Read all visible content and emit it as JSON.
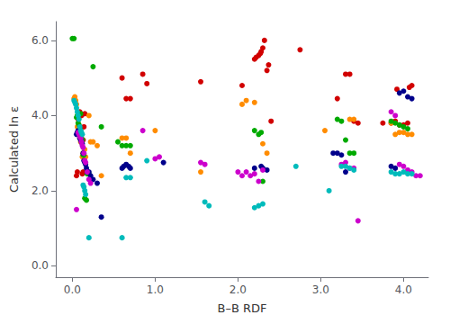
{
  "chart_data": {
    "type": "scatter",
    "xlabel": "B–B RDF",
    "ylabel": "Calculated ln ε",
    "xlim": [
      -0.2,
      4.3
    ],
    "ylim": [
      -0.3,
      6.5
    ],
    "xticks": [
      {
        "value": 0,
        "label": "0.0"
      },
      {
        "value": 1,
        "label": "1.0"
      },
      {
        "value": 2,
        "label": "2.0"
      },
      {
        "value": 3,
        "label": "3.0"
      },
      {
        "value": 4,
        "label": "4.0"
      }
    ],
    "yticks": [
      {
        "value": 0,
        "label": "0.0"
      },
      {
        "value": 2,
        "label": "2.0"
      },
      {
        "value": 4,
        "label": "4.0"
      },
      {
        "value": 6,
        "label": "6.0"
      }
    ],
    "grid": false,
    "series": [
      {
        "color": "#d10000",
        "x": [
          0.05,
          0.06,
          0.07,
          0.08,
          0.09,
          0.09,
          0.1,
          0.11,
          0.12,
          0.13,
          0.13,
          0.14,
          0.15,
          0.6,
          0.65,
          0.7,
          0.85,
          0.9,
          1.55,
          2.05,
          2.2,
          2.22,
          2.25,
          2.27,
          2.28,
          2.3,
          2.32,
          2.35,
          2.37,
          2.4,
          2.75,
          3.2,
          3.3,
          3.35,
          3.4,
          3.45,
          3.75,
          3.85,
          3.9,
          3.92,
          3.95,
          4.0,
          4.05,
          4.07,
          4.1
        ],
        "values": [
          2.4,
          2.5,
          3.9,
          4.0,
          4.1,
          3.55,
          3.6,
          4.0,
          2.45,
          2.5,
          3.35,
          3.7,
          4.05,
          5.0,
          4.45,
          4.45,
          5.1,
          4.85,
          4.9,
          4.8,
          5.5,
          5.55,
          5.6,
          5.65,
          5.7,
          5.8,
          6.0,
          5.2,
          5.35,
          3.85,
          5.75,
          4.45,
          5.1,
          5.1,
          3.85,
          3.8,
          3.8,
          3.8,
          3.85,
          4.7,
          3.75,
          3.75,
          3.8,
          4.75,
          4.8
        ]
      },
      {
        "color": "#ff8c00",
        "x": [
          0.02,
          0.03,
          0.04,
          0.05,
          0.06,
          0.07,
          0.08,
          0.09,
          0.1,
          0.11,
          0.12,
          0.13,
          0.14,
          0.15,
          0.16,
          0.2,
          0.22,
          0.25,
          0.3,
          0.35,
          0.6,
          0.65,
          0.7,
          1.0,
          1.55,
          2.05,
          2.1,
          2.2,
          2.3,
          2.35,
          3.05,
          3.35,
          3.4,
          3.85,
          3.9,
          3.95,
          4.0,
          4.05,
          4.1
        ],
        "values": [
          4.45,
          4.5,
          4.4,
          4.3,
          3.7,
          3.5,
          3.55,
          3.4,
          3.3,
          3.3,
          2.9,
          3.0,
          2.9,
          3.1,
          2.9,
          4.0,
          3.3,
          3.3,
          3.2,
          2.4,
          3.4,
          3.4,
          3.0,
          3.6,
          2.5,
          4.3,
          4.4,
          4.35,
          3.25,
          3.0,
          3.6,
          3.9,
          3.9,
          3.8,
          3.5,
          3.55,
          3.55,
          3.5,
          3.5
        ]
      },
      {
        "color": "#00aa00",
        "x": [
          0.0,
          0.02,
          0.05,
          0.06,
          0.07,
          0.08,
          0.09,
          0.1,
          0.1,
          0.11,
          0.12,
          0.13,
          0.14,
          0.15,
          0.17,
          0.18,
          0.2,
          0.25,
          0.35,
          0.55,
          0.6,
          0.65,
          0.7,
          2.2,
          2.25,
          2.28,
          2.3,
          3.2,
          3.25,
          3.3,
          3.35,
          3.4,
          3.85,
          3.9,
          3.95,
          4.0,
          4.05
        ],
        "values": [
          6.05,
          6.05,
          3.95,
          4.0,
          3.8,
          3.75,
          3.65,
          3.5,
          4.05,
          3.4,
          3.35,
          2.95,
          2.95,
          1.8,
          1.75,
          2.45,
          2.45,
          5.3,
          3.7,
          3.3,
          3.2,
          3.2,
          3.2,
          3.6,
          3.5,
          3.55,
          2.25,
          3.9,
          3.85,
          3.35,
          3.0,
          3.0,
          3.85,
          3.8,
          3.75,
          3.7,
          3.65
        ]
      },
      {
        "color": "#00008b",
        "x": [
          0.05,
          0.06,
          0.07,
          0.08,
          0.09,
          0.1,
          0.11,
          0.12,
          0.13,
          0.14,
          0.15,
          0.16,
          0.17,
          0.18,
          0.2,
          0.22,
          0.25,
          0.3,
          0.35,
          0.6,
          0.62,
          0.65,
          0.68,
          0.7,
          1.1,
          2.2,
          2.28,
          2.3,
          2.35,
          3.15,
          3.2,
          3.25,
          3.3,
          3.85,
          3.9,
          3.95,
          4.0,
          4.05,
          4.1
        ],
        "values": [
          3.5,
          3.55,
          3.6,
          3.5,
          3.4,
          3.35,
          3.3,
          3.25,
          3.0,
          2.8,
          2.75,
          2.7,
          2.6,
          2.5,
          2.5,
          2.4,
          2.3,
          2.2,
          1.3,
          2.6,
          2.65,
          2.7,
          2.65,
          2.6,
          2.75,
          2.6,
          2.65,
          2.6,
          2.55,
          3.0,
          3.0,
          2.95,
          2.5,
          2.65,
          2.6,
          4.6,
          4.65,
          4.5,
          4.45
        ]
      },
      {
        "color": "#cc00cc",
        "x": [
          0.05,
          0.07,
          0.08,
          0.09,
          0.1,
          0.11,
          0.12,
          0.13,
          0.14,
          0.15,
          0.16,
          0.18,
          0.2,
          0.22,
          0.85,
          1.0,
          1.05,
          1.55,
          1.6,
          2.0,
          2.05,
          2.1,
          2.15,
          2.2,
          2.25,
          2.3,
          3.25,
          3.3,
          3.35,
          3.4,
          3.45,
          3.85,
          3.9,
          3.95,
          4.0,
          4.05,
          4.1,
          4.15,
          4.2
        ],
        "values": [
          1.5,
          3.55,
          3.5,
          3.45,
          3.4,
          3.3,
          3.2,
          3.15,
          3.0,
          2.8,
          2.75,
          2.5,
          2.3,
          2.2,
          3.6,
          2.85,
          2.9,
          2.75,
          2.7,
          2.5,
          2.4,
          2.5,
          2.4,
          2.45,
          2.25,
          2.55,
          2.7,
          2.75,
          2.6,
          2.6,
          1.2,
          4.1,
          4.0,
          2.7,
          2.65,
          2.55,
          2.5,
          2.4,
          2.4
        ]
      },
      {
        "color": "#00bbbb",
        "x": [
          0.02,
          0.03,
          0.04,
          0.05,
          0.06,
          0.07,
          0.08,
          0.09,
          0.1,
          0.11,
          0.12,
          0.13,
          0.14,
          0.15,
          0.16,
          0.2,
          0.6,
          0.65,
          0.7,
          0.9,
          1.6,
          1.65,
          2.2,
          2.25,
          2.3,
          2.7,
          3.1,
          3.25,
          3.3,
          3.35,
          3.4,
          3.85,
          3.9,
          3.95,
          4.0,
          4.05,
          4.1
        ],
        "values": [
          4.4,
          4.35,
          4.3,
          4.2,
          4.1,
          4.0,
          3.9,
          3.7,
          3.6,
          3.55,
          3.5,
          2.15,
          2.1,
          2.0,
          1.9,
          0.75,
          0.75,
          2.35,
          2.35,
          2.8,
          1.7,
          1.6,
          1.55,
          1.6,
          1.65,
          2.65,
          2.0,
          2.65,
          2.65,
          2.6,
          2.55,
          2.5,
          2.45,
          2.45,
          2.5,
          2.45,
          2.45
        ]
      }
    ]
  }
}
